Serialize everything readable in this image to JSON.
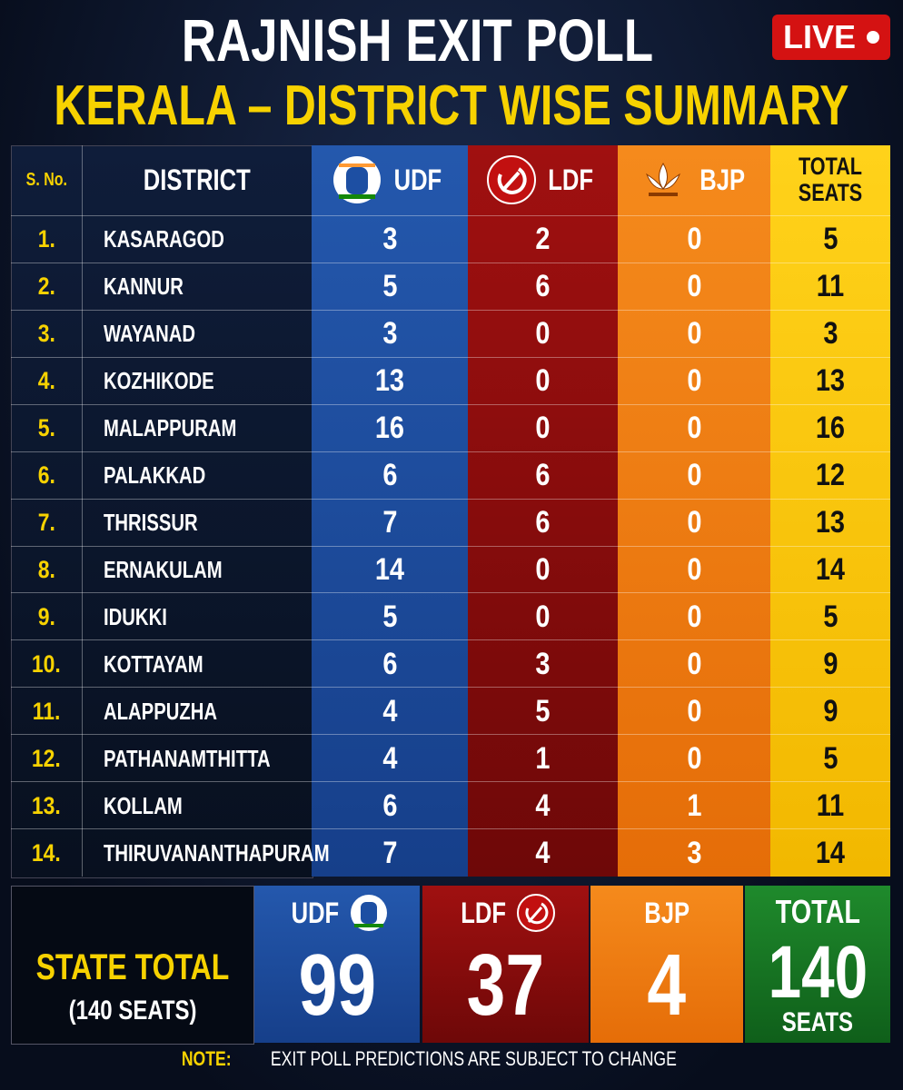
{
  "header": {
    "title": "RAJNISH EXIT POLL",
    "subtitle": "KERALA – DISTRICT WISE SUMMARY",
    "badge": "LIVE"
  },
  "table": {
    "columns": [
      "S. No.",
      "DISTRICT",
      "UDF",
      "LDF",
      "BJP",
      "TOTAL SEATS"
    ],
    "rows": [
      [
        "1.",
        "KASARAGOD",
        3,
        2,
        0,
        5
      ],
      [
        "2.",
        "KANNUR",
        5,
        6,
        0,
        11
      ],
      [
        "3.",
        "WAYANAD",
        3,
        0,
        0,
        3
      ],
      [
        "4.",
        "KOZHIKODE",
        13,
        0,
        0,
        13
      ],
      [
        "5.",
        "MALAPPURAM",
        16,
        0,
        0,
        16
      ],
      [
        "6.",
        "PALAKKAD",
        6,
        6,
        0,
        12
      ],
      [
        "7.",
        "THRISSUR",
        7,
        6,
        0,
        13
      ],
      [
        "8.",
        "ERNAKULAM",
        14,
        0,
        0,
        14
      ],
      [
        "9.",
        "IDUKKI",
        5,
        0,
        0,
        5
      ],
      [
        "10.",
        "KOTTAYAM",
        6,
        3,
        0,
        9
      ],
      [
        "11.",
        "ALAPPUZHA",
        4,
        5,
        0,
        9
      ],
      [
        "12.",
        "PATHANAMTHITTA",
        4,
        1,
        0,
        5
      ],
      [
        "13.",
        "KOLLAM",
        6,
        4,
        1,
        11
      ],
      [
        "14.",
        "THIRUVANANTHAPURAM",
        7,
        4,
        3,
        14
      ]
    ]
  },
  "state_total": {
    "label": "STATE TOTAL",
    "seats": "(140 SEATS)",
    "udf_label": "UDF",
    "udf": 99,
    "ldf_label": "LDF",
    "ldf": 37,
    "bjp_label": "BJP",
    "bjp": 4,
    "total_label": "TOTAL",
    "total": 140,
    "total_unit": "SEATS"
  },
  "note": {
    "label": "NOTE:",
    "text": "EXIT POLL PREDICTIONS ARE SUBJECT TO CHANGE"
  }
}
